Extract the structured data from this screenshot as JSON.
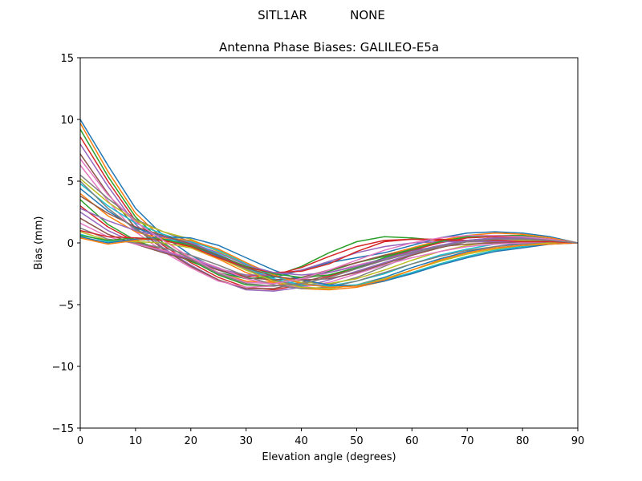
{
  "header": {
    "station": "SITL1AR",
    "radome": "NONE"
  },
  "chart_data": {
    "type": "line",
    "title": "Antenna Phase Biases: GALILEO-E5a",
    "xlabel": "Elevation angle (degrees)",
    "ylabel": "Bias (mm)",
    "xlim": [
      0,
      90
    ],
    "ylim": [
      -15,
      15
    ],
    "xticks": [
      "0",
      "10",
      "20",
      "30",
      "40",
      "50",
      "60",
      "70",
      "80",
      "90"
    ],
    "yticks": [
      "−15",
      "−10",
      "−5",
      "0",
      "5",
      "10",
      "15"
    ],
    "grid": false,
    "legend": "none",
    "x": [
      0,
      5,
      10,
      15,
      20,
      25,
      30,
      35,
      40,
      45,
      50,
      55,
      60,
      65,
      70,
      75,
      80,
      85,
      90
    ],
    "colors": [
      "#1f77b4",
      "#ff7f0e",
      "#2ca02c",
      "#d62728",
      "#9467bd",
      "#8c564b",
      "#e377c2",
      "#7f7f7f",
      "#bcbd22",
      "#17becf"
    ],
    "series": [
      {
        "values": [
          10.0,
          6.3,
          2.8,
          0.6,
          -1.0,
          -2.2,
          -2.9,
          -2.8,
          -2.2,
          -1.6,
          -1.2,
          -0.8,
          -0.2,
          0.4,
          0.8,
          0.9,
          0.8,
          0.5,
          0.0
        ]
      },
      {
        "values": [
          9.7,
          5.8,
          2.4,
          0.3,
          -1.3,
          -2.4,
          -3.1,
          -3.2,
          -2.8,
          -2.2,
          -1.6,
          -1.0,
          -0.4,
          0.2,
          0.6,
          0.8,
          0.7,
          0.4,
          0.0
        ]
      },
      {
        "values": [
          9.2,
          5.4,
          2.1,
          0.0,
          -1.4,
          -2.6,
          -3.4,
          -3.5,
          -3.0,
          -2.3,
          -1.6,
          -1.1,
          -0.5,
          0.1,
          0.5,
          0.6,
          0.6,
          0.3,
          0.0
        ]
      },
      {
        "values": [
          8.6,
          5.0,
          1.8,
          -0.2,
          -1.6,
          -2.8,
          -3.6,
          -3.8,
          -3.4,
          -2.7,
          -2.0,
          -1.3,
          -0.6,
          0.0,
          0.4,
          0.5,
          0.5,
          0.3,
          0.0
        ]
      },
      {
        "values": [
          8.0,
          4.6,
          1.5,
          -0.4,
          -1.8,
          -3.0,
          -3.8,
          -3.9,
          -3.6,
          -3.0,
          -2.3,
          -1.6,
          -0.9,
          -0.2,
          0.2,
          0.4,
          0.4,
          0.2,
          0.0
        ]
      },
      {
        "values": [
          7.2,
          4.0,
          1.2,
          -0.5,
          -1.9,
          -3.0,
          -3.7,
          -3.7,
          -3.2,
          -2.6,
          -2.0,
          -1.4,
          -0.8,
          -0.3,
          0.1,
          0.3,
          0.3,
          0.2,
          0.0
        ]
      },
      {
        "values": [
          6.3,
          3.4,
          0.9,
          -0.7,
          -2.0,
          -3.1,
          -3.6,
          -3.5,
          -3.0,
          -2.4,
          -1.8,
          -1.3,
          -0.8,
          -0.3,
          0.1,
          0.2,
          0.3,
          0.2,
          0.0
        ]
      },
      {
        "values": [
          5.5,
          3.6,
          1.9,
          0.9,
          0.1,
          -1.0,
          -2.1,
          -3.0,
          -3.5,
          -3.4,
          -2.8,
          -1.9,
          -1.0,
          -0.3,
          0.2,
          0.4,
          0.4,
          0.2,
          0.0
        ]
      },
      {
        "values": [
          5.2,
          3.3,
          1.8,
          0.9,
          0.3,
          -0.7,
          -1.8,
          -2.7,
          -3.2,
          -3.3,
          -2.9,
          -2.2,
          -1.4,
          -0.7,
          -0.2,
          0.1,
          0.2,
          0.1,
          0.0
        ]
      },
      {
        "values": [
          4.8,
          3.0,
          1.6,
          0.7,
          0.0,
          -0.9,
          -2.0,
          -2.9,
          -3.4,
          -3.5,
          -3.1,
          -2.5,
          -1.7,
          -1.0,
          -0.5,
          -0.1,
          0.1,
          0.1,
          0.0
        ]
      },
      {
        "values": [
          4.4,
          2.6,
          1.2,
          0.5,
          -0.2,
          -1.1,
          -2.2,
          -3.1,
          -3.6,
          -3.7,
          -3.4,
          -2.8,
          -2.0,
          -1.3,
          -0.7,
          -0.3,
          0.0,
          0.1,
          0.0
        ]
      },
      {
        "values": [
          4.0,
          2.2,
          0.9,
          0.3,
          -0.4,
          -1.3,
          -2.4,
          -3.2,
          -3.7,
          -3.8,
          -3.6,
          -3.1,
          -2.4,
          -1.7,
          -1.1,
          -0.6,
          -0.3,
          0.0,
          0.0
        ]
      },
      {
        "values": [
          3.5,
          1.5,
          0.2,
          -0.6,
          -1.5,
          -2.4,
          -2.9,
          -2.7,
          -1.9,
          -0.8,
          0.1,
          0.5,
          0.4,
          0.2,
          0.1,
          0.1,
          0.1,
          0.1,
          0.0
        ]
      },
      {
        "values": [
          3.0,
          1.3,
          0.1,
          -0.6,
          -1.4,
          -2.2,
          -2.7,
          -2.6,
          -2.0,
          -1.1,
          -0.3,
          0.2,
          0.3,
          0.2,
          0.1,
          0.1,
          0.1,
          0.1,
          0.0
        ]
      },
      {
        "values": [
          2.5,
          1.0,
          0.0,
          -0.7,
          -1.3,
          -2.1,
          -2.6,
          -2.6,
          -2.2,
          -1.5,
          -0.8,
          -0.3,
          0.0,
          0.1,
          0.1,
          0.1,
          0.1,
          0.1,
          0.0
        ]
      },
      {
        "values": [
          2.0,
          0.7,
          -0.1,
          -0.8,
          -1.4,
          -2.2,
          -2.8,
          -3.0,
          -2.8,
          -2.2,
          -1.6,
          -1.0,
          -0.6,
          -0.3,
          -0.1,
          0.0,
          0.0,
          0.0,
          0.0
        ]
      },
      {
        "values": [
          1.6,
          0.5,
          -0.1,
          -0.6,
          -1.2,
          -2.0,
          -2.9,
          -3.4,
          -3.6,
          -3.2,
          -2.5,
          -1.8,
          -1.2,
          -0.7,
          -0.3,
          -0.1,
          0.0,
          0.0,
          0.0
        ]
      },
      {
        "values": [
          1.2,
          0.3,
          0.0,
          -0.4,
          -1.0,
          -1.8,
          -2.7,
          -3.4,
          -3.7,
          -3.6,
          -3.1,
          -2.4,
          -1.7,
          -1.1,
          -0.6,
          -0.3,
          -0.1,
          0.0,
          0.0
        ]
      },
      {
        "values": [
          0.9,
          0.2,
          0.1,
          0.0,
          -0.4,
          -1.2,
          -2.2,
          -3.1,
          -3.6,
          -3.7,
          -3.4,
          -2.9,
          -2.2,
          -1.5,
          -0.9,
          -0.5,
          -0.2,
          0.0,
          0.0
        ]
      },
      {
        "values": [
          0.7,
          0.1,
          0.2,
          0.3,
          0.1,
          -0.6,
          -1.7,
          -2.7,
          -3.3,
          -3.5,
          -3.4,
          -3.0,
          -2.4,
          -1.7,
          -1.1,
          -0.6,
          -0.3,
          -0.1,
          0.0
        ]
      },
      {
        "values": [
          0.5,
          0.0,
          0.3,
          0.5,
          0.4,
          -0.2,
          -1.2,
          -2.2,
          -3.0,
          -3.4,
          -3.5,
          -3.1,
          -2.5,
          -1.8,
          -1.2,
          -0.7,
          -0.4,
          -0.1,
          0.0
        ]
      },
      {
        "values": [
          0.4,
          -0.1,
          0.2,
          0.4,
          0.2,
          -0.5,
          -1.6,
          -2.6,
          -3.3,
          -3.6,
          -3.5,
          -3.0,
          -2.2,
          -1.4,
          -0.8,
          -0.4,
          -0.2,
          -0.1,
          0.0
        ]
      },
      {
        "values": [
          0.6,
          0.2,
          0.4,
          0.3,
          -0.2,
          -1.0,
          -1.9,
          -2.5,
          -2.8,
          -2.6,
          -2.0,
          -1.2,
          -0.5,
          0.1,
          0.5,
          0.6,
          0.5,
          0.3,
          0.0
        ]
      },
      {
        "values": [
          1.0,
          0.5,
          0.4,
          0.2,
          -0.3,
          -1.2,
          -2.0,
          -2.4,
          -2.3,
          -1.7,
          -0.7,
          0.1,
          0.3,
          0.3,
          0.2,
          0.2,
          0.1,
          0.1,
          0.0
        ]
      },
      {
        "values": [
          2.8,
          1.8,
          1.0,
          0.5,
          0.0,
          -0.8,
          -1.8,
          -2.4,
          -2.6,
          -2.4,
          -1.9,
          -1.3,
          -0.7,
          -0.2,
          0.2,
          0.4,
          0.4,
          0.2,
          0.0
        ]
      },
      {
        "values": [
          3.8,
          2.4,
          1.3,
          0.6,
          -0.1,
          -1.0,
          -2.0,
          -2.7,
          -3.0,
          -2.9,
          -2.4,
          -1.7,
          -1.0,
          -0.4,
          0.1,
          0.3,
          0.3,
          0.2,
          0.0
        ]
      },
      {
        "values": [
          6.8,
          3.9,
          1.7,
          0.2,
          -1.2,
          -2.4,
          -3.2,
          -3.3,
          -2.9,
          -2.2,
          -1.4,
          -0.6,
          0.0,
          0.4,
          0.6,
          0.6,
          0.5,
          0.3,
          0.0
        ]
      },
      {
        "values": [
          5.0,
          2.8,
          1.1,
          -0.1,
          -1.3,
          -2.5,
          -3.3,
          -3.5,
          -3.3,
          -2.8,
          -2.1,
          -1.4,
          -0.8,
          -0.3,
          0.1,
          0.3,
          0.3,
          0.2,
          0.0
        ]
      }
    ]
  }
}
